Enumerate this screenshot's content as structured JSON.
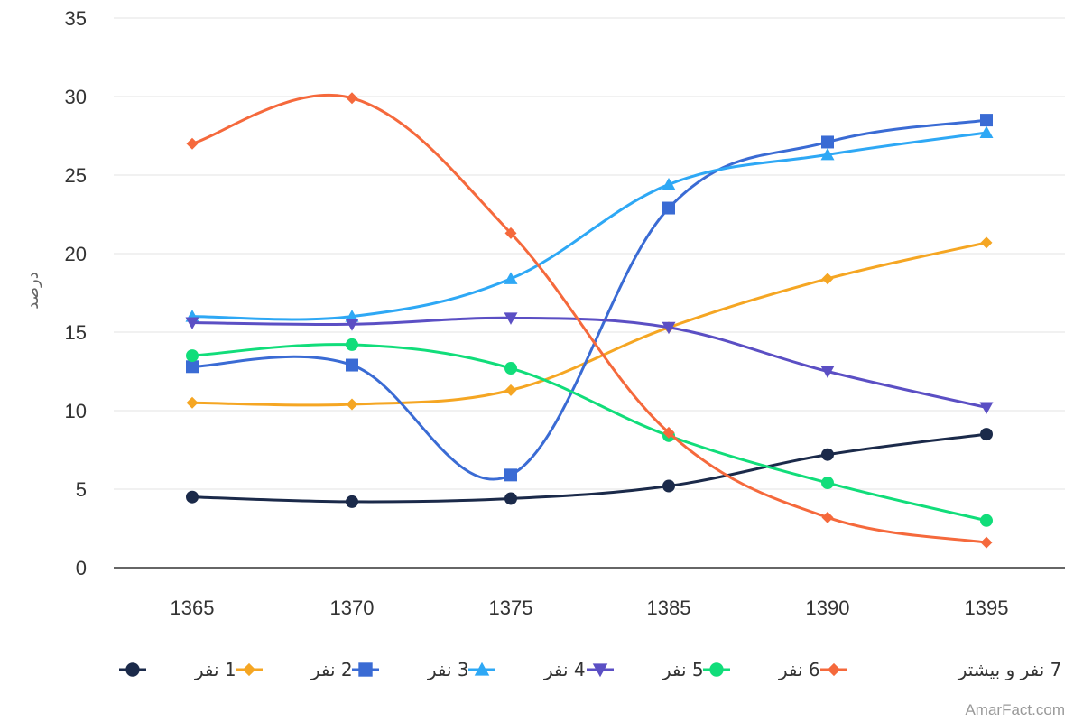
{
  "chart_data": {
    "type": "line",
    "title": "",
    "xlabel": "",
    "ylabel": "درصد",
    "categories": [
      "1365",
      "1370",
      "1375",
      "1385",
      "1390",
      "1395"
    ],
    "ylim": [
      0,
      35
    ],
    "yticks": [
      0,
      5,
      10,
      15,
      20,
      25,
      30,
      35
    ],
    "grid": true,
    "legend": "bottom",
    "series": [
      {
        "name": "1 نفر",
        "color": "#1b2a4a",
        "marker": "circle",
        "values": [
          4.5,
          4.2,
          4.4,
          5.2,
          7.2,
          8.5
        ]
      },
      {
        "name": "2 نفر",
        "color": "#f5a623",
        "marker": "diamond",
        "values": [
          10.5,
          10.4,
          11.3,
          15.3,
          18.4,
          20.7
        ]
      },
      {
        "name": "3 نفر",
        "color": "#3a6bd4",
        "marker": "square",
        "values": [
          12.8,
          12.9,
          5.9,
          22.9,
          27.1,
          28.5
        ]
      },
      {
        "name": "4 نفر",
        "color": "#2ea8f5",
        "marker": "triangle",
        "values": [
          16.0,
          16.0,
          18.4,
          24.4,
          26.3,
          27.7
        ]
      },
      {
        "name": "5 نفر",
        "color": "#5b4fc4",
        "marker": "triangle-down",
        "values": [
          15.6,
          15.5,
          15.9,
          15.3,
          12.5,
          10.2
        ]
      },
      {
        "name": "6 نفر",
        "color": "#11dd7a",
        "marker": "circle",
        "values": [
          13.5,
          14.2,
          12.7,
          8.4,
          5.4,
          3.0
        ]
      },
      {
        "name": "7 نفر و بیشتر",
        "color": "#f5693c",
        "marker": "diamond",
        "values": [
          27.0,
          29.9,
          21.3,
          8.6,
          3.2,
          1.6
        ]
      }
    ]
  },
  "credit": "AmarFact.com"
}
